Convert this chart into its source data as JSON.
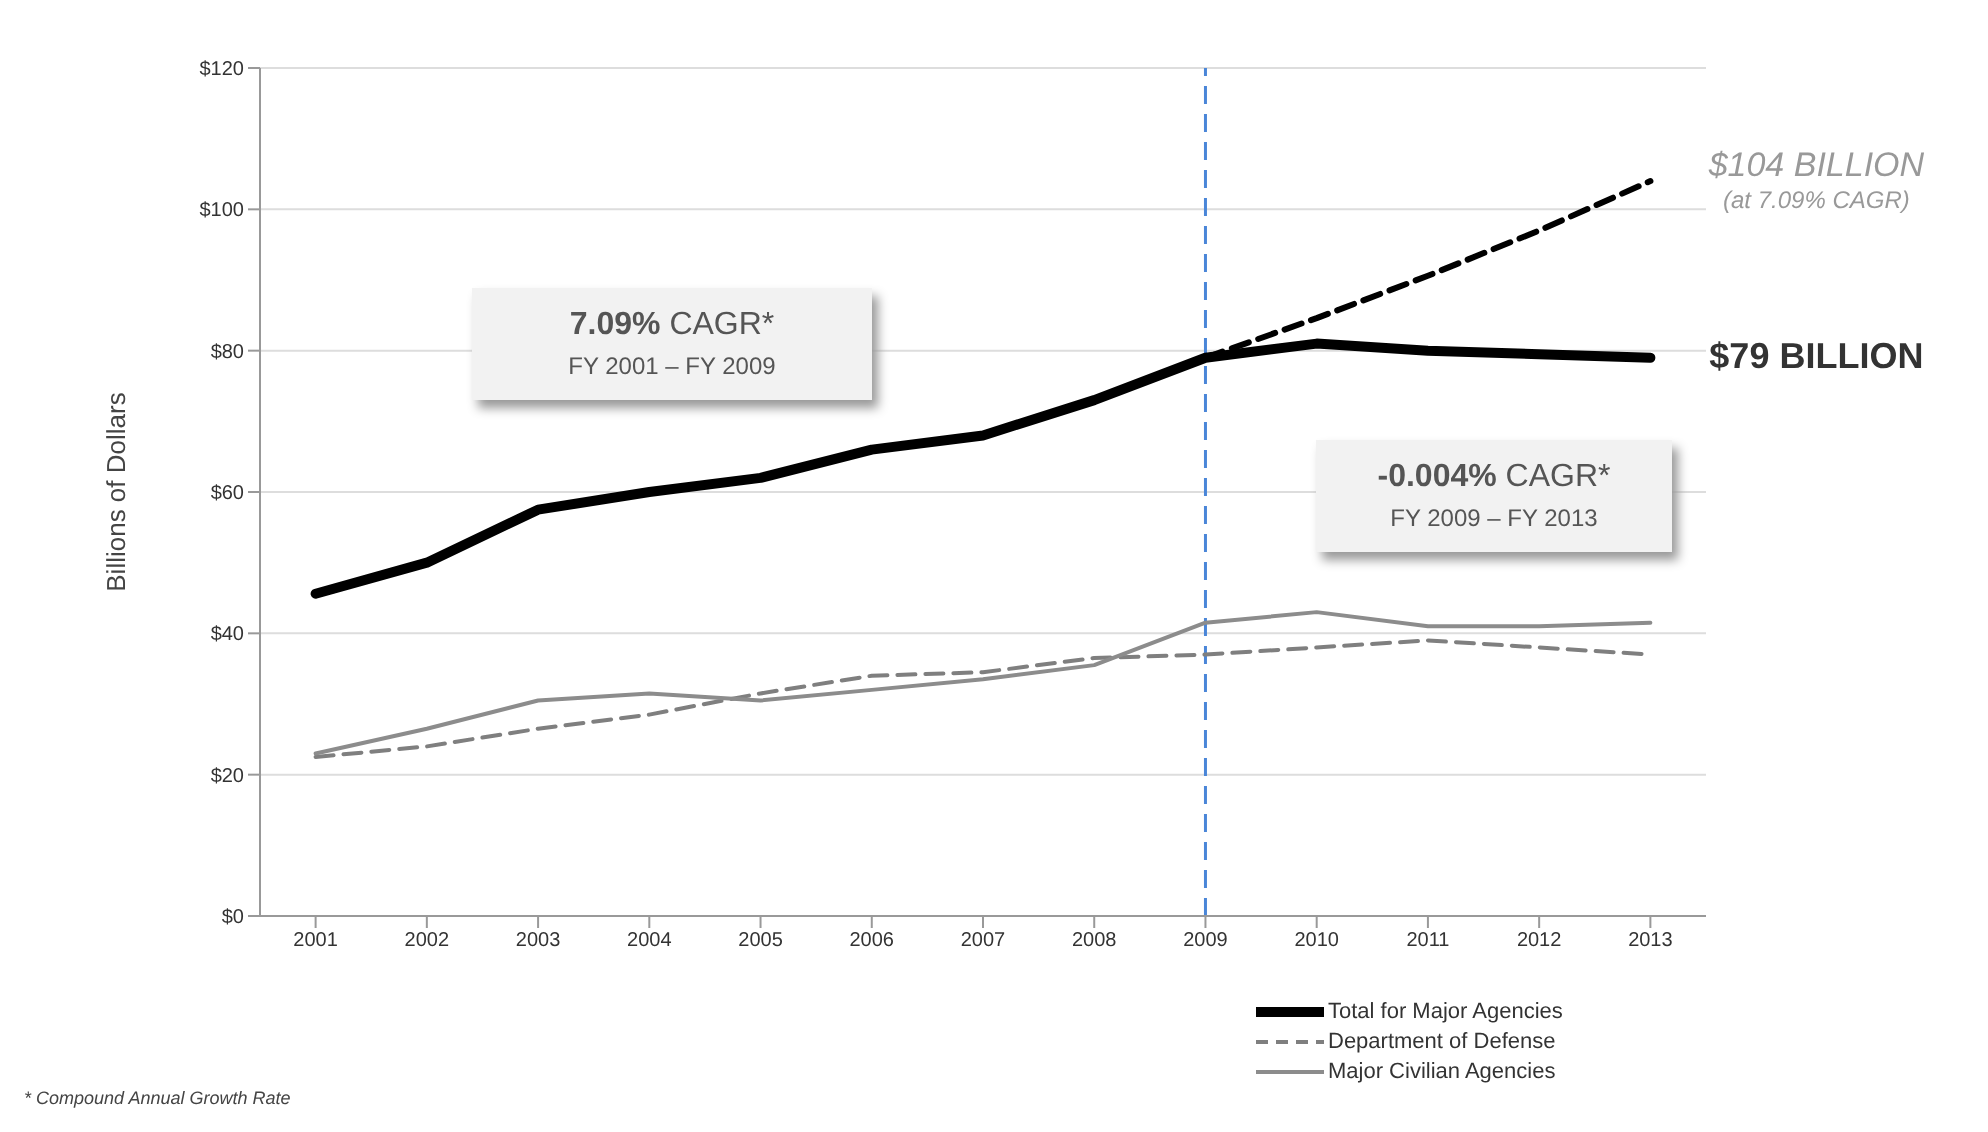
{
  "chart_data": {
    "type": "line",
    "ylabel": "Billions of Dollars",
    "categories": [
      "2001",
      "2002",
      "2003",
      "2004",
      "2005",
      "2006",
      "2007",
      "2008",
      "2009",
      "2010",
      "2011",
      "2012",
      "2013"
    ],
    "series": [
      {
        "name": "Total for Major Agencies",
        "color": "#000000",
        "line_style": "solid",
        "values": [
          45.6,
          50,
          57.5,
          60,
          62,
          66,
          68,
          73,
          79,
          81,
          80,
          79.5,
          79
        ]
      },
      {
        "name": "Department of Defense",
        "color": "#7f7f7f",
        "line_style": "dashed",
        "values": [
          22.5,
          24,
          26.5,
          28.5,
          31.5,
          34,
          34.5,
          36.5,
          37,
          38,
          39,
          38,
          37
        ]
      },
      {
        "name": "Major Civilian Agencies",
        "color": "#8c8c8c",
        "line_style": "solid",
        "values": [
          23,
          26.5,
          30.5,
          31.5,
          30.5,
          32,
          33.5,
          35.5,
          41.5,
          43,
          41,
          41,
          41.5
        ]
      },
      {
        "color": "#000000",
        "line_style": "dashed",
        "values": [
          null,
          null,
          null,
          null,
          null,
          null,
          null,
          null,
          79,
          84.6,
          90.6,
          97,
          104
        ]
      }
    ],
    "ylim": [
      0,
      120
    ],
    "yticks": [
      {
        "value": 0,
        "label": "$0"
      },
      {
        "value": 20,
        "label": "$20"
      },
      {
        "value": 40,
        "label": "$40"
      },
      {
        "value": 60,
        "label": "$60"
      },
      {
        "value": 80,
        "label": "$80"
      },
      {
        "value": 100,
        "label": "$100"
      },
      {
        "value": 120,
        "label": "$120"
      }
    ],
    "grid": "y",
    "legend": "bottom right",
    "marker": "none",
    "ref_lines": [
      {
        "axis": "x",
        "value": "2009",
        "color": "#4a86d8",
        "line_style": "dashed"
      }
    ],
    "annotations": [
      "7.09% CAGR*\nFY 2001 – FY 2009",
      "-0.004% CAGR*\nFY 2009 – FY 2013",
      {
        "text": "$104 BILLION\n(at 7.09% CAGR)",
        "x": "2013",
        "y": 104
      },
      {
        "text": "$79 BILLION",
        "x": "2013",
        "y": 79
      },
      "* Compound Annual Growth Rate"
    ]
  }
}
